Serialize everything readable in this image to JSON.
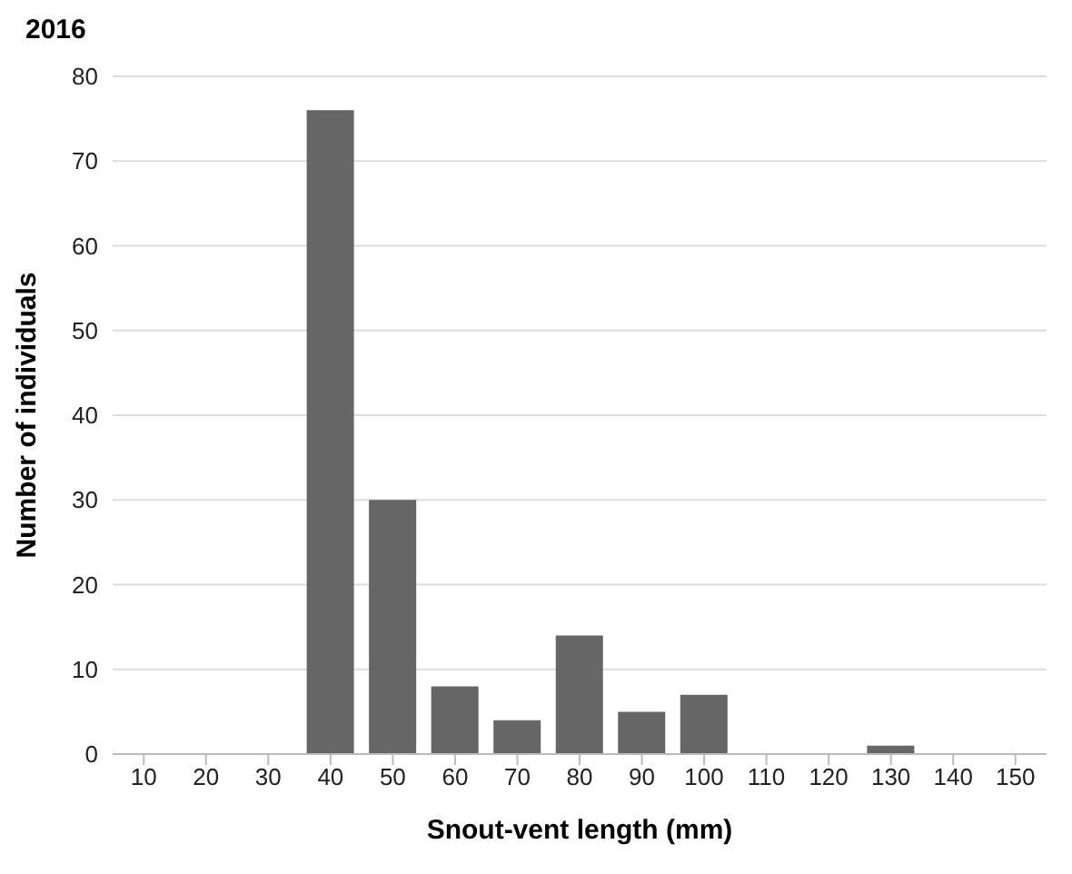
{
  "chart_data": {
    "type": "bar",
    "title": "2016",
    "xlabel": "Snout-vent length (mm)",
    "ylabel": "Number of individuals",
    "categories": [
      "10",
      "20",
      "30",
      "40",
      "50",
      "60",
      "70",
      "80",
      "90",
      "100",
      "110",
      "120",
      "130",
      "140",
      "150"
    ],
    "values": [
      0,
      0,
      0,
      76,
      30,
      8,
      4,
      14,
      5,
      7,
      0,
      0,
      1,
      0,
      0
    ],
    "color": "#666666",
    "ylim": [
      0,
      80
    ],
    "yticks": [
      0,
      10,
      20,
      30,
      40,
      50,
      60,
      70,
      80
    ],
    "grid": "y",
    "legend": false
  }
}
